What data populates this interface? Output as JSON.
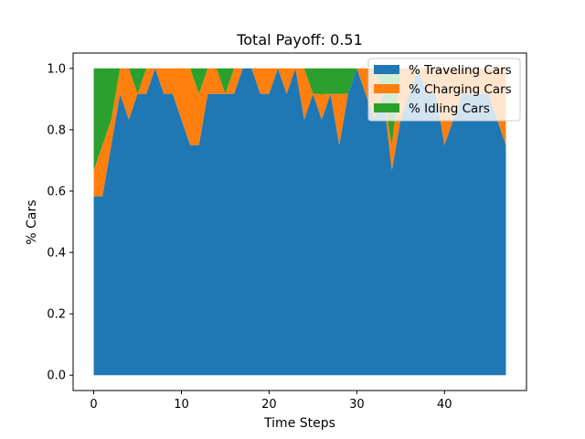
{
  "chart_data": {
    "type": "area",
    "stacked": true,
    "title": "Total Payoff: 0.51",
    "xlabel": "Time Steps",
    "ylabel": "% Cars",
    "xlim": [
      -2.35,
      49.35
    ],
    "ylim": [
      -0.05,
      1.05
    ],
    "x_ticks": [
      0,
      10,
      20,
      30,
      40
    ],
    "y_ticks": [
      0.0,
      0.2,
      0.4,
      0.6,
      0.8,
      1.0
    ],
    "grid": false,
    "legend_position": "top-right",
    "x": [
      0,
      1,
      2,
      3,
      4,
      5,
      6,
      7,
      8,
      9,
      10,
      11,
      12,
      13,
      14,
      15,
      16,
      17,
      18,
      19,
      20,
      21,
      22,
      23,
      24,
      25,
      26,
      27,
      28,
      29,
      30,
      31,
      32,
      33,
      34,
      35,
      36,
      37,
      38,
      39,
      40,
      41,
      42,
      43,
      44,
      45,
      46,
      47
    ],
    "series": [
      {
        "name": "% Traveling Cars",
        "color": "#1f77b4",
        "values": [
          0.583,
          0.583,
          0.75,
          0.917,
          0.833,
          0.917,
          0.917,
          1.0,
          0.917,
          0.917,
          0.833,
          0.75,
          0.75,
          0.917,
          0.917,
          0.917,
          0.917,
          1.0,
          1.0,
          0.917,
          0.917,
          1.0,
          0.917,
          1.0,
          0.833,
          0.917,
          0.833,
          0.917,
          0.75,
          0.917,
          1.0,
          0.917,
          0.833,
          0.917,
          0.667,
          0.833,
          0.917,
          1.0,
          0.917,
          0.917,
          0.75,
          0.833,
          0.917,
          0.917,
          0.917,
          0.917,
          0.833,
          0.75
        ]
      },
      {
        "name": "% Charging Cars",
        "color": "#ff7f0e",
        "values": [
          0.084,
          0.167,
          0.083,
          0.083,
          0.167,
          0.0,
          0.083,
          0.0,
          0.083,
          0.083,
          0.167,
          0.25,
          0.167,
          0.083,
          0.083,
          0.0,
          0.083,
          0.0,
          0.0,
          0.083,
          0.083,
          0.0,
          0.083,
          0.0,
          0.167,
          0.0,
          0.083,
          0.0,
          0.167,
          0.0,
          0.0,
          0.083,
          0.167,
          0.0,
          0.083,
          0.167,
          0.083,
          0.0,
          0.083,
          0.083,
          0.25,
          0.167,
          0.083,
          0.083,
          0.083,
          0.083,
          0.167,
          0.25
        ]
      },
      {
        "name": "% Idling Cars",
        "color": "#2ca02c",
        "values": [
          0.333,
          0.25,
          0.167,
          0.0,
          0.0,
          0.083,
          0.0,
          0.0,
          0.0,
          0.0,
          0.0,
          0.0,
          0.083,
          0.0,
          0.0,
          0.083,
          0.0,
          0.0,
          0.0,
          0.0,
          0.0,
          0.0,
          0.0,
          0.0,
          0.0,
          0.083,
          0.084,
          0.083,
          0.083,
          0.083,
          0.0,
          0.0,
          0.0,
          0.083,
          0.25,
          0.0,
          0.0,
          0.0,
          0.0,
          0.0,
          0.0,
          0.0,
          0.0,
          0.0,
          0.0,
          0.0,
          0.0,
          0.0
        ]
      }
    ]
  }
}
